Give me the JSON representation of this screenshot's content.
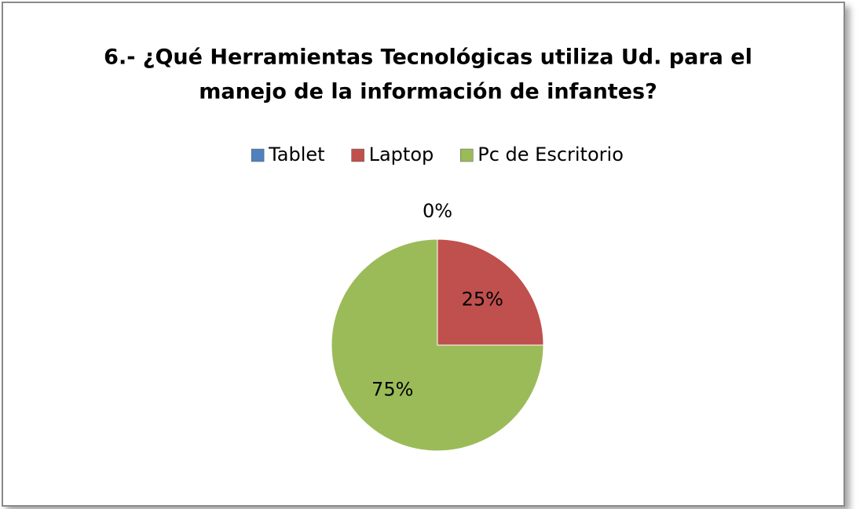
{
  "chart_data": {
    "type": "pie",
    "title": [
      "6.- ¿Qué Herramientas Tecnológicas utiliza Ud. para el",
      "manejo de la información de infantes?"
    ],
    "categories": [
      "Tablet",
      "Laptop",
      "Pc de Escritorio"
    ],
    "values": [
      0,
      25,
      75
    ],
    "value_labels": [
      "0%",
      "25%",
      "75%"
    ],
    "colors": [
      "#4f81bd",
      "#c0504d",
      "#9bbb59"
    ],
    "legend": "top"
  }
}
